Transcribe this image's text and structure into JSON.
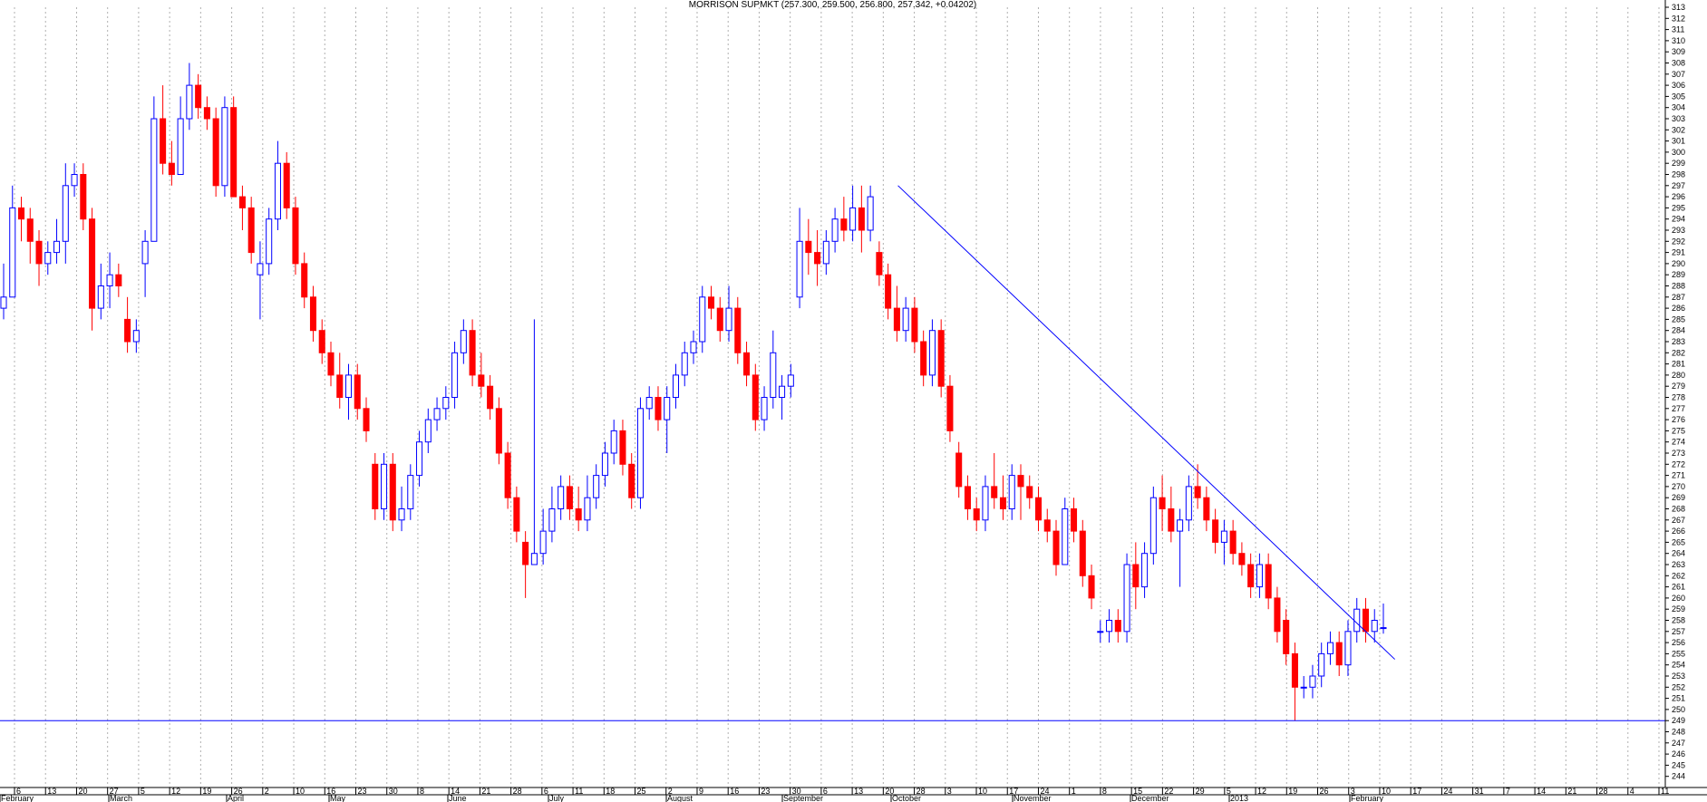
{
  "chart_data": {
    "type": "candlestick",
    "title": "MORRISON SUPMKT (257.300, 259.500, 256.800, 257.342, +0.04202)",
    "ylim": [
      243,
      313
    ],
    "grid": true,
    "y_ticks": [
      244,
      245,
      246,
      247,
      248,
      249,
      250,
      251,
      252,
      253,
      254,
      255,
      256,
      257,
      258,
      259,
      260,
      261,
      262,
      263,
      264,
      265,
      266,
      267,
      268,
      269,
      270,
      271,
      272,
      273,
      274,
      275,
      276,
      277,
      278,
      279,
      280,
      281,
      282,
      283,
      284,
      285,
      286,
      287,
      288,
      289,
      290,
      291,
      292,
      293,
      294,
      295,
      296,
      297,
      298,
      299,
      300,
      301,
      302,
      303,
      304,
      305,
      306,
      307,
      308,
      309,
      310,
      311,
      312,
      313
    ],
    "x_day_ticks": [
      "6",
      "13",
      "20",
      "27",
      "5",
      "12",
      "19",
      "26",
      "2",
      "10",
      "16",
      "23",
      "30",
      "8",
      "14",
      "21",
      "28",
      "6",
      "11",
      "18",
      "25",
      "2",
      "9",
      "16",
      "23",
      "30",
      "6",
      "13",
      "20",
      "28",
      "3",
      "10",
      "17",
      "24",
      "1",
      "8",
      "15",
      "22",
      "29",
      "5",
      "12",
      "19",
      "26",
      "3",
      "10",
      "17",
      "24",
      "31",
      "7",
      "14",
      "21",
      "28",
      "4",
      "11"
    ],
    "x_months": [
      "February",
      "March",
      "April",
      "May",
      "June",
      "July",
      "August",
      "September",
      "October",
      "November",
      "December",
      "2013",
      "February"
    ],
    "colors": {
      "up": "#0000ff",
      "down": "#ff0000",
      "line": "#0000ff",
      "grid": "#b0b0b0"
    },
    "reference_line": {
      "y": 249
    },
    "trendline": {
      "from": {
        "date": "2012-09-24",
        "y": 297
      },
      "to": {
        "date": "2013-02-01",
        "y": 254.5
      }
    },
    "candles": [
      {
        "o": 286,
        "h": 290,
        "l": 285,
        "c": 287
      },
      {
        "o": 287,
        "h": 297,
        "l": 287,
        "c": 295
      },
      {
        "o": 295,
        "h": 296,
        "l": 292,
        "c": 294
      },
      {
        "o": 294,
        "h": 295,
        "l": 290,
        "c": 292
      },
      {
        "o": 292,
        "h": 293,
        "l": 288,
        "c": 290
      },
      {
        "o": 290,
        "h": 292,
        "l": 289,
        "c": 291
      },
      {
        "o": 291,
        "h": 294,
        "l": 290,
        "c": 292
      },
      {
        "o": 292,
        "h": 299,
        "l": 290,
        "c": 297
      },
      {
        "o": 297,
        "h": 299,
        "l": 296,
        "c": 298
      },
      {
        "o": 298,
        "h": 299,
        "l": 293,
        "c": 294
      },
      {
        "o": 294,
        "h": 295,
        "l": 284,
        "c": 286
      },
      {
        "o": 286,
        "h": 290,
        "l": 285,
        "c": 288
      },
      {
        "o": 288,
        "h": 291,
        "l": 286,
        "c": 289
      },
      {
        "o": 289,
        "h": 290,
        "l": 287,
        "c": 288
      },
      {
        "o": 285,
        "h": 287,
        "l": 282,
        "c": 283
      },
      {
        "o": 283,
        "h": 285,
        "l": 282,
        "c": 284
      },
      {
        "o": 290,
        "h": 293,
        "l": 287,
        "c": 292
      },
      {
        "o": 292,
        "h": 305,
        "l": 292,
        "c": 303
      },
      {
        "o": 303,
        "h": 306,
        "l": 298,
        "c": 299
      },
      {
        "o": 299,
        "h": 301,
        "l": 297,
        "c": 298
      },
      {
        "o": 298,
        "h": 305,
        "l": 298,
        "c": 303
      },
      {
        "o": 303,
        "h": 308,
        "l": 302,
        "c": 306
      },
      {
        "o": 306,
        "h": 307,
        "l": 303,
        "c": 304
      },
      {
        "o": 304,
        "h": 305,
        "l": 302,
        "c": 303
      },
      {
        "o": 303,
        "h": 304,
        "l": 296,
        "c": 297
      },
      {
        "o": 297,
        "h": 305,
        "l": 296,
        "c": 304
      },
      {
        "o": 304,
        "h": 305,
        "l": 296,
        "c": 296
      },
      {
        "o": 296,
        "h": 297,
        "l": 293,
        "c": 295
      },
      {
        "o": 295,
        "h": 296,
        "l": 290,
        "c": 291
      },
      {
        "o": 289,
        "h": 292,
        "l": 285,
        "c": 290
      },
      {
        "o": 290,
        "h": 295,
        "l": 289,
        "c": 294
      },
      {
        "o": 294,
        "h": 301,
        "l": 293,
        "c": 299
      },
      {
        "o": 299,
        "h": 300,
        "l": 294,
        "c": 295
      },
      {
        "o": 295,
        "h": 296,
        "l": 289,
        "c": 290
      },
      {
        "o": 290,
        "h": 291,
        "l": 286,
        "c": 287
      },
      {
        "o": 287,
        "h": 288,
        "l": 283,
        "c": 284
      },
      {
        "o": 284,
        "h": 285,
        "l": 281,
        "c": 282
      },
      {
        "o": 282,
        "h": 283,
        "l": 279,
        "c": 280
      },
      {
        "o": 280,
        "h": 282,
        "l": 277,
        "c": 278
      },
      {
        "o": 278,
        "h": 281,
        "l": 276,
        "c": 280
      },
      {
        "o": 280,
        "h": 281,
        "l": 276,
        "c": 277
      },
      {
        "o": 277,
        "h": 278,
        "l": 274,
        "c": 275
      },
      {
        "o": 272,
        "h": 273,
        "l": 267,
        "c": 268
      },
      {
        "o": 268,
        "h": 273,
        "l": 267,
        "c": 272
      },
      {
        "o": 272,
        "h": 273,
        "l": 266,
        "c": 267
      },
      {
        "o": 267,
        "h": 270,
        "l": 266,
        "c": 268
      },
      {
        "o": 268,
        "h": 272,
        "l": 267,
        "c": 271
      },
      {
        "o": 271,
        "h": 275,
        "l": 270,
        "c": 274
      },
      {
        "o": 274,
        "h": 277,
        "l": 273,
        "c": 276
      },
      {
        "o": 276,
        "h": 278,
        "l": 275,
        "c": 277
      },
      {
        "o": 277,
        "h": 279,
        "l": 276,
        "c": 278
      },
      {
        "o": 278,
        "h": 283,
        "l": 277,
        "c": 282
      },
      {
        "o": 282,
        "h": 285,
        "l": 281,
        "c": 284
      },
      {
        "o": 284,
        "h": 285,
        "l": 279,
        "c": 280
      },
      {
        "o": 280,
        "h": 282,
        "l": 278,
        "c": 279
      },
      {
        "o": 279,
        "h": 280,
        "l": 276,
        "c": 277
      },
      {
        "o": 277,
        "h": 278,
        "l": 272,
        "c": 273
      },
      {
        "o": 273,
        "h": 274,
        "l": 268,
        "c": 269
      },
      {
        "o": 269,
        "h": 270,
        "l": 265,
        "c": 266
      },
      {
        "o": 265,
        "h": 266,
        "l": 260,
        "c": 263
      },
      {
        "o": 263,
        "h": 285,
        "l": 263,
        "c": 264
      },
      {
        "o": 264,
        "h": 268,
        "l": 263,
        "c": 266
      },
      {
        "o": 266,
        "h": 270,
        "l": 265,
        "c": 268
      },
      {
        "o": 268,
        "h": 271,
        "l": 267,
        "c": 270
      },
      {
        "o": 270,
        "h": 271,
        "l": 267,
        "c": 268
      },
      {
        "o": 268,
        "h": 270,
        "l": 266,
        "c": 267
      },
      {
        "o": 267,
        "h": 271,
        "l": 266,
        "c": 269
      },
      {
        "o": 269,
        "h": 272,
        "l": 268,
        "c": 271
      },
      {
        "o": 271,
        "h": 274,
        "l": 270,
        "c": 273
      },
      {
        "o": 273,
        "h": 276,
        "l": 272,
        "c": 275
      },
      {
        "o": 275,
        "h": 276,
        "l": 271,
        "c": 272
      },
      {
        "o": 272,
        "h": 273,
        "l": 268,
        "c": 269
      },
      {
        "o": 269,
        "h": 278,
        "l": 268,
        "c": 277
      },
      {
        "o": 277,
        "h": 279,
        "l": 276,
        "c": 278
      },
      {
        "o": 278,
        "h": 279,
        "l": 275,
        "c": 276
      },
      {
        "o": 276,
        "h": 279,
        "l": 273,
        "c": 278
      },
      {
        "o": 278,
        "h": 281,
        "l": 277,
        "c": 280
      },
      {
        "o": 280,
        "h": 283,
        "l": 279,
        "c": 282
      },
      {
        "o": 282,
        "h": 284,
        "l": 281,
        "c": 283
      },
      {
        "o": 283,
        "h": 288,
        "l": 282,
        "c": 287
      },
      {
        "o": 287,
        "h": 288,
        "l": 285,
        "c": 286
      },
      {
        "o": 286,
        "h": 287,
        "l": 283,
        "c": 284
      },
      {
        "o": 284,
        "h": 288,
        "l": 283,
        "c": 286
      },
      {
        "o": 286,
        "h": 287,
        "l": 281,
        "c": 282
      },
      {
        "o": 282,
        "h": 283,
        "l": 279,
        "c": 280
      },
      {
        "o": 280,
        "h": 281,
        "l": 275,
        "c": 276
      },
      {
        "o": 276,
        "h": 279,
        "l": 275,
        "c": 278
      },
      {
        "o": 278,
        "h": 284,
        "l": 277,
        "c": 282
      },
      {
        "o": 278,
        "h": 280,
        "l": 276,
        "c": 279
      },
      {
        "o": 279,
        "h": 281,
        "l": 278,
        "c": 280
      },
      {
        "o": 287,
        "h": 295,
        "l": 286,
        "c": 292
      },
      {
        "o": 292,
        "h": 294,
        "l": 289,
        "c": 291
      },
      {
        "o": 291,
        "h": 293,
        "l": 288,
        "c": 290
      },
      {
        "o": 290,
        "h": 293,
        "l": 289,
        "c": 292
      },
      {
        "o": 292,
        "h": 295,
        "l": 291,
        "c": 294
      },
      {
        "o": 294,
        "h": 296,
        "l": 292,
        "c": 293
      },
      {
        "o": 293,
        "h": 297,
        "l": 292,
        "c": 295
      },
      {
        "o": 295,
        "h": 297,
        "l": 291,
        "c": 293
      },
      {
        "o": 293,
        "h": 297,
        "l": 292,
        "c": 296
      },
      {
        "o": 291,
        "h": 292,
        "l": 288,
        "c": 289
      },
      {
        "o": 289,
        "h": 290,
        "l": 285,
        "c": 286
      },
      {
        "o": 286,
        "h": 288,
        "l": 283,
        "c": 284
      },
      {
        "o": 284,
        "h": 287,
        "l": 283,
        "c": 286
      },
      {
        "o": 286,
        "h": 287,
        "l": 282,
        "c": 283
      },
      {
        "o": 283,
        "h": 284,
        "l": 279,
        "c": 280
      },
      {
        "o": 280,
        "h": 285,
        "l": 279,
        "c": 284
      },
      {
        "o": 284,
        "h": 285,
        "l": 278,
        "c": 279
      },
      {
        "o": 279,
        "h": 280,
        "l": 274,
        "c": 275
      },
      {
        "o": 273,
        "h": 274,
        "l": 269,
        "c": 270
      },
      {
        "o": 270,
        "h": 271,
        "l": 267,
        "c": 268
      },
      {
        "o": 268,
        "h": 269,
        "l": 266,
        "c": 267
      },
      {
        "o": 267,
        "h": 271,
        "l": 266,
        "c": 270
      },
      {
        "o": 270,
        "h": 273,
        "l": 268,
        "c": 269
      },
      {
        "o": 269,
        "h": 271,
        "l": 267,
        "c": 268
      },
      {
        "o": 268,
        "h": 272,
        "l": 267,
        "c": 271
      },
      {
        "o": 271,
        "h": 272,
        "l": 267,
        "c": 270
      },
      {
        "o": 270,
        "h": 271,
        "l": 268,
        "c": 269
      },
      {
        "o": 269,
        "h": 270,
        "l": 266,
        "c": 267
      },
      {
        "o": 267,
        "h": 268,
        "l": 265,
        "c": 266
      },
      {
        "o": 266,
        "h": 267,
        "l": 262,
        "c": 263
      },
      {
        "o": 263,
        "h": 269,
        "l": 263,
        "c": 268
      },
      {
        "o": 268,
        "h": 269,
        "l": 265,
        "c": 266
      },
      {
        "o": 266,
        "h": 267,
        "l": 261,
        "c": 262
      },
      {
        "o": 262,
        "h": 263,
        "l": 259,
        "c": 260
      },
      {
        "o": 257,
        "h": 258,
        "l": 256,
        "c": 257
      },
      {
        "o": 257,
        "h": 259,
        "l": 256,
        "c": 258
      },
      {
        "o": 258,
        "h": 259,
        "l": 256,
        "c": 257
      },
      {
        "o": 257,
        "h": 264,
        "l": 256,
        "c": 263
      },
      {
        "o": 263,
        "h": 265,
        "l": 259,
        "c": 261
      },
      {
        "o": 261,
        "h": 265,
        "l": 260,
        "c": 264
      },
      {
        "o": 264,
        "h": 270,
        "l": 263,
        "c": 269
      },
      {
        "o": 269,
        "h": 271,
        "l": 266,
        "c": 268
      },
      {
        "o": 268,
        "h": 270,
        "l": 265,
        "c": 266
      },
      {
        "o": 266,
        "h": 268,
        "l": 261,
        "c": 267
      },
      {
        "o": 267,
        "h": 271,
        "l": 266,
        "c": 270
      },
      {
        "o": 270,
        "h": 272,
        "l": 268,
        "c": 269
      },
      {
        "o": 269,
        "h": 270,
        "l": 266,
        "c": 267
      },
      {
        "o": 267,
        "h": 268,
        "l": 264,
        "c": 265
      },
      {
        "o": 265,
        "h": 267,
        "l": 263,
        "c": 266
      },
      {
        "o": 266,
        "h": 267,
        "l": 263,
        "c": 264
      },
      {
        "o": 264,
        "h": 265,
        "l": 262,
        "c": 263
      },
      {
        "o": 263,
        "h": 264,
        "l": 260,
        "c": 261
      },
      {
        "o": 261,
        "h": 264,
        "l": 260,
        "c": 263
      },
      {
        "o": 263,
        "h": 264,
        "l": 259,
        "c": 260
      },
      {
        "o": 260,
        "h": 261,
        "l": 256,
        "c": 257
      },
      {
        "o": 258,
        "h": 259,
        "l": 254,
        "c": 255
      },
      {
        "o": 255,
        "h": 256,
        "l": 249,
        "c": 252
      },
      {
        "o": 252,
        "h": 253,
        "l": 251,
        "c": 252
      },
      {
        "o": 252,
        "h": 254,
        "l": 251,
        "c": 253
      },
      {
        "o": 253,
        "h": 256,
        "l": 252,
        "c": 255
      },
      {
        "o": 255,
        "h": 257,
        "l": 254,
        "c": 256
      },
      {
        "o": 256,
        "h": 257,
        "l": 253,
        "c": 254
      },
      {
        "o": 254,
        "h": 258,
        "l": 253,
        "c": 257
      },
      {
        "o": 257,
        "h": 260,
        "l": 256,
        "c": 259
      },
      {
        "o": 259,
        "h": 260,
        "l": 256,
        "c": 257
      },
      {
        "o": 257,
        "h": 259,
        "l": 256,
        "c": 258
      },
      {
        "o": 257.3,
        "h": 259.5,
        "l": 256.8,
        "c": 257.342
      }
    ]
  }
}
